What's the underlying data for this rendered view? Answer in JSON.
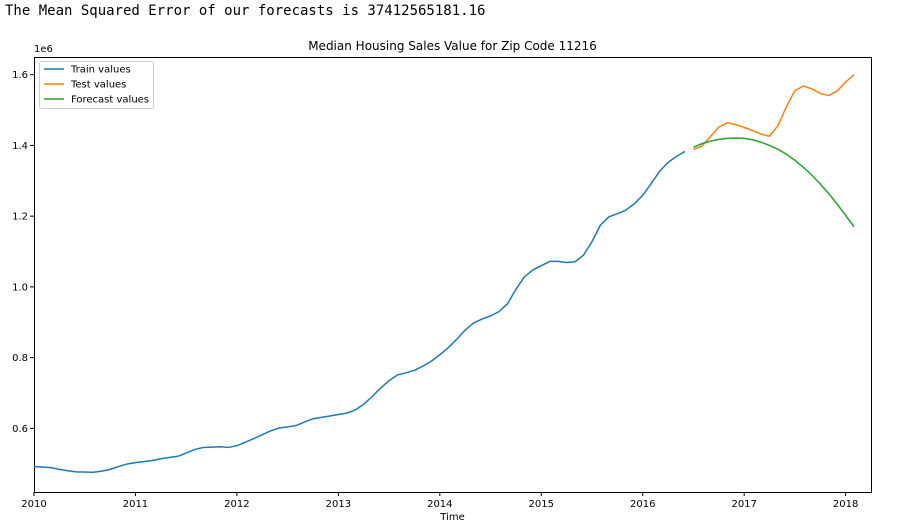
{
  "output": {
    "text": "The Mean Squared Error of our forecasts is 37412565181.16"
  },
  "chart_data": {
    "type": "line",
    "title": "Median Housing Sales Value for Zip Code 11216",
    "xlabel": "Time",
    "ylabel": "",
    "y_offset_label": "1e6",
    "xlim": [
      "2010-01",
      "2018-04"
    ],
    "ylim": [
      0.42,
      1.65
    ],
    "x_ticks": [
      "2010",
      "2011",
      "2012",
      "2013",
      "2014",
      "2015",
      "2016",
      "2017",
      "2018"
    ],
    "y_ticks": [
      "0.6",
      "0.8",
      "1.0",
      "1.2",
      "1.4",
      "1.6"
    ],
    "y_tick_values": [
      0.6,
      0.8,
      1.0,
      1.2,
      1.4,
      1.6
    ],
    "grid": false,
    "legend_position": "top-left",
    "series": [
      {
        "name": "Train values",
        "color": "#1f77b4",
        "points": [
          [
            "2010-01",
            0.492
          ],
          [
            "2010-03",
            0.489
          ],
          [
            "2010-04",
            0.484
          ],
          [
            "2010-05",
            0.48
          ],
          [
            "2010-06",
            0.477
          ],
          [
            "2010-08",
            0.476
          ],
          [
            "2010-09",
            0.479
          ],
          [
            "2010-10",
            0.484
          ],
          [
            "2010-11",
            0.492
          ],
          [
            "2010-12",
            0.499
          ],
          [
            "2011-01",
            0.503
          ],
          [
            "2011-02",
            0.506
          ],
          [
            "2011-03",
            0.509
          ],
          [
            "2011-04",
            0.514
          ],
          [
            "2011-06",
            0.521
          ],
          [
            "2011-07",
            0.53
          ],
          [
            "2011-08",
            0.54
          ],
          [
            "2011-09",
            0.546
          ],
          [
            "2011-11",
            0.548
          ],
          [
            "2011-12",
            0.546
          ],
          [
            "2012-01",
            0.551
          ],
          [
            "2012-02",
            0.561
          ],
          [
            "2012-03",
            0.571
          ],
          [
            "2012-04",
            0.582
          ],
          [
            "2012-05",
            0.593
          ],
          [
            "2012-06",
            0.601
          ],
          [
            "2012-07",
            0.604
          ],
          [
            "2012-08",
            0.608
          ],
          [
            "2012-09",
            0.618
          ],
          [
            "2012-10",
            0.627
          ],
          [
            "2012-11",
            0.631
          ],
          [
            "2012-12",
            0.635
          ],
          [
            "2013-01",
            0.639
          ],
          [
            "2013-02",
            0.643
          ],
          [
            "2013-03",
            0.652
          ],
          [
            "2013-04",
            0.668
          ],
          [
            "2013-05",
            0.69
          ],
          [
            "2013-06",
            0.714
          ],
          [
            "2013-07",
            0.735
          ],
          [
            "2013-08",
            0.751
          ],
          [
            "2013-09",
            0.757
          ],
          [
            "2013-10",
            0.764
          ],
          [
            "2013-11",
            0.776
          ],
          [
            "2013-12",
            0.79
          ],
          [
            "2014-01",
            0.808
          ],
          [
            "2014-02",
            0.828
          ],
          [
            "2014-03",
            0.852
          ],
          [
            "2014-04",
            0.878
          ],
          [
            "2014-05",
            0.898
          ],
          [
            "2014-06",
            0.909
          ],
          [
            "2014-07",
            0.918
          ],
          [
            "2014-08",
            0.93
          ],
          [
            "2014-09",
            0.952
          ],
          [
            "2014-10",
            0.993
          ],
          [
            "2014-11",
            1.028
          ],
          [
            "2014-12",
            1.048
          ],
          [
            "2015-01",
            1.06
          ],
          [
            "2015-02",
            1.072
          ],
          [
            "2015-03",
            1.072
          ],
          [
            "2015-04",
            1.069
          ],
          [
            "2015-05",
            1.071
          ],
          [
            "2015-06",
            1.09
          ],
          [
            "2015-07",
            1.128
          ],
          [
            "2015-08",
            1.175
          ],
          [
            "2015-09",
            1.198
          ],
          [
            "2015-10",
            1.207
          ],
          [
            "2015-11",
            1.217
          ],
          [
            "2015-12",
            1.235
          ],
          [
            "2016-01",
            1.259
          ],
          [
            "2016-02",
            1.292
          ],
          [
            "2016-03",
            1.327
          ],
          [
            "2016-04",
            1.352
          ],
          [
            "2016-05",
            1.369
          ],
          [
            "2016-06",
            1.383
          ]
        ]
      },
      {
        "name": "Test values",
        "color": "#ff7f0e",
        "points": [
          [
            "2016-07",
            1.389
          ],
          [
            "2016-08",
            1.398
          ],
          [
            "2016-09",
            1.425
          ],
          [
            "2016-10",
            1.452
          ],
          [
            "2016-11",
            1.464
          ],
          [
            "2016-12",
            1.459
          ],
          [
            "2017-01",
            1.451
          ],
          [
            "2017-02",
            1.442
          ],
          [
            "2017-03",
            1.432
          ],
          [
            "2017-04",
            1.426
          ],
          [
            "2017-05",
            1.456
          ],
          [
            "2017-06",
            1.51
          ],
          [
            "2017-07",
            1.555
          ],
          [
            "2017-08",
            1.568
          ],
          [
            "2017-09",
            1.56
          ],
          [
            "2017-10",
            1.547
          ],
          [
            "2017-11",
            1.541
          ],
          [
            "2017-12",
            1.554
          ],
          [
            "2018-01",
            1.579
          ],
          [
            "2018-02",
            1.6
          ]
        ]
      },
      {
        "name": "Forecast values",
        "color": "#2ca02c",
        "points": [
          [
            "2016-07",
            1.395
          ],
          [
            "2016-08",
            1.405
          ],
          [
            "2016-09",
            1.412
          ],
          [
            "2016-10",
            1.417
          ],
          [
            "2016-11",
            1.42
          ],
          [
            "2016-12",
            1.421
          ],
          [
            "2017-01",
            1.42
          ],
          [
            "2017-02",
            1.416
          ],
          [
            "2017-03",
            1.409
          ],
          [
            "2017-04",
            1.4
          ],
          [
            "2017-05",
            1.389
          ],
          [
            "2017-06",
            1.375
          ],
          [
            "2017-07",
            1.358
          ],
          [
            "2017-08",
            1.338
          ],
          [
            "2017-09",
            1.316
          ],
          [
            "2017-10",
            1.291
          ],
          [
            "2017-11",
            1.264
          ],
          [
            "2017-12",
            1.234
          ],
          [
            "2018-01",
            1.202
          ],
          [
            "2018-02",
            1.17
          ]
        ]
      }
    ]
  }
}
